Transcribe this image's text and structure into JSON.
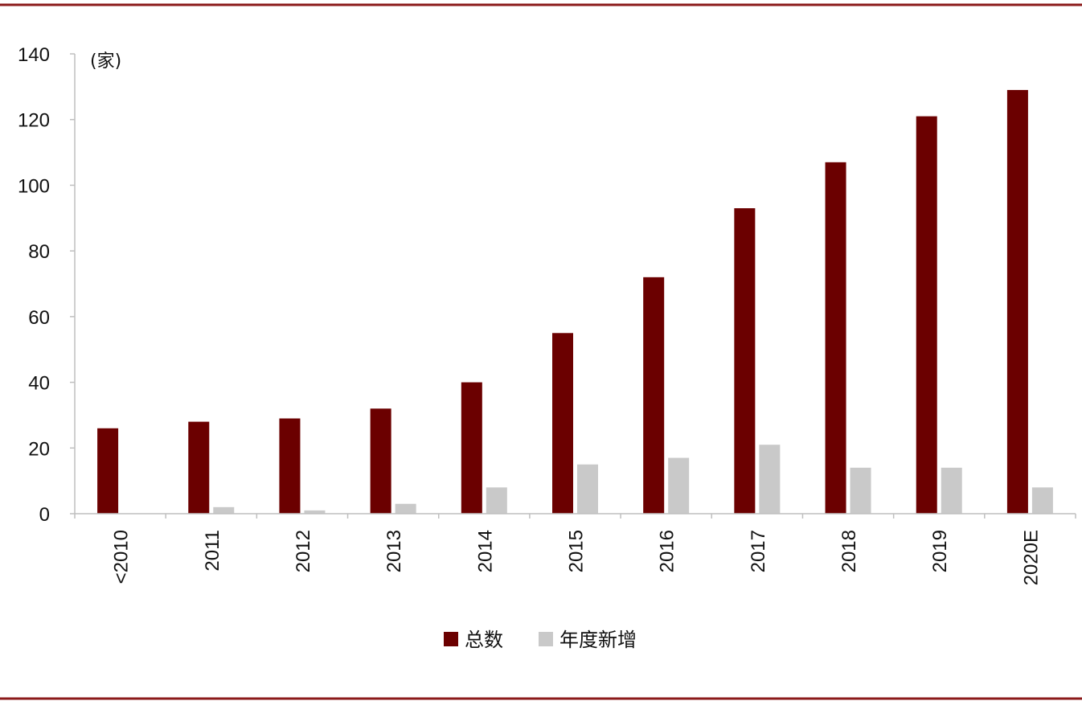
{
  "chart_data": {
    "type": "bar",
    "unit_label": "(家)",
    "categories": [
      "<2010",
      "2011",
      "2012",
      "2013",
      "2014",
      "2015",
      "2016",
      "2017",
      "2018",
      "2019",
      "2020E"
    ],
    "series": [
      {
        "name": "总数",
        "color": "#6b0000",
        "values": [
          26,
          28,
          29,
          32,
          40,
          55,
          72,
          93,
          107,
          121,
          129
        ]
      },
      {
        "name": "年度新增",
        "color": "#c9c9c9",
        "values": [
          0,
          2,
          1,
          3,
          8,
          15,
          17,
          21,
          14,
          14,
          8
        ]
      }
    ],
    "ylim": [
      0,
      140
    ],
    "yticks": [
      "0",
      "20",
      "40",
      "60",
      "80",
      "100",
      "120",
      "140"
    ],
    "grid": false,
    "legend_position": "bottom-center",
    "colors": {
      "frame_line": "#8b1a1a",
      "axis": "#bfbfbf"
    }
  }
}
